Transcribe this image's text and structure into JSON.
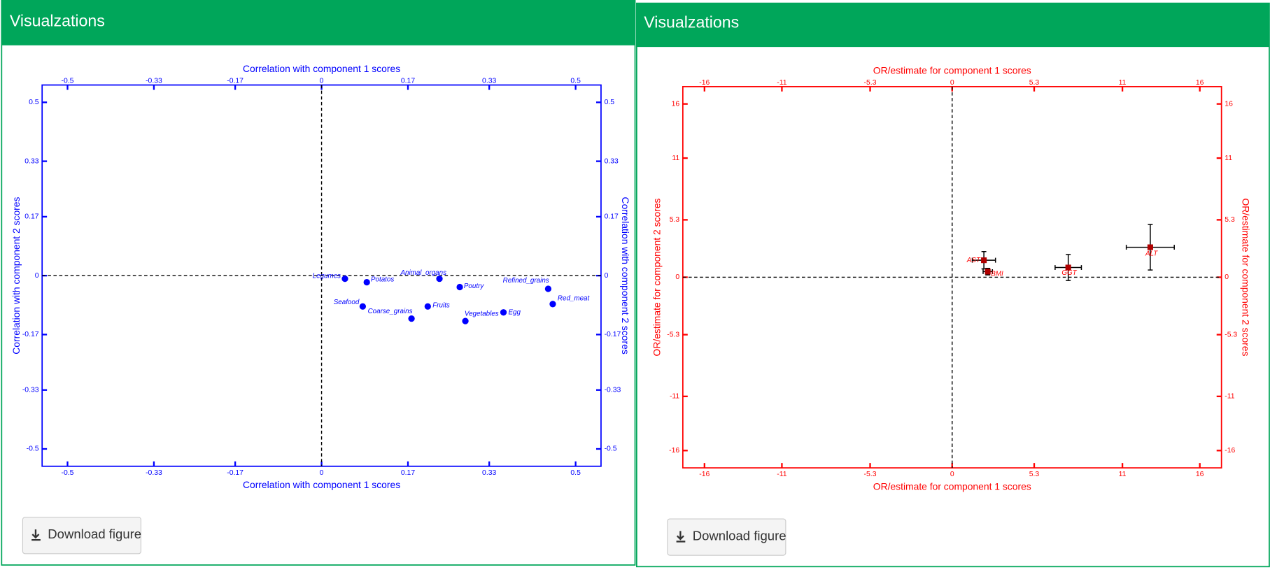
{
  "panels": [
    {
      "title": "Visualzations",
      "button": "Download figure"
    },
    {
      "title": "Visualzations",
      "button": "Download figure"
    }
  ],
  "chart_data": [
    {
      "type": "scatter",
      "color": "#0000ff",
      "marker_color": "#0000ff",
      "xlabel": "Correlation with component 1 scores",
      "ylabel": "Correlation with component 2 scores",
      "xlim": [
        -0.55,
        0.55
      ],
      "ylim": [
        -0.55,
        0.55
      ],
      "xticks": [
        -0.5,
        -0.33,
        -0.17,
        0,
        0.17,
        0.33,
        0.5
      ],
      "yticks": [
        -0.5,
        -0.33,
        -0.17,
        0,
        0.17,
        0.33,
        0.5
      ],
      "zero_lines": true,
      "labels": [
        "Legumes",
        "Potatos",
        "Animal_organs",
        "Poutry",
        "Refined_grains",
        "Red_meat",
        "Seafood",
        "Coarse_grains",
        "Fruits",
        "Vegetables",
        "Egg"
      ],
      "x": [
        0.046,
        0.089,
        0.232,
        0.272,
        0.446,
        0.455,
        0.081,
        0.177,
        0.209,
        0.283,
        0.358
      ],
      "values": [
        -0.009,
        -0.019,
        -0.009,
        -0.033,
        -0.038,
        -0.082,
        -0.089,
        -0.124,
        -0.089,
        -0.131,
        -0.106
      ]
    },
    {
      "type": "scatter",
      "color": "#ff0000",
      "marker_color": "#b00000",
      "xlabel": "OR/estimate for component 1 scores",
      "ylabel": "OR/estimate for component 2 scores",
      "xlim": [
        -17.4,
        17.4
      ],
      "ylim": [
        -17.6,
        17.6
      ],
      "xticks": [
        -16,
        -11,
        -5.3,
        0,
        5.3,
        11,
        16
      ],
      "yticks": [
        -16,
        -11,
        -5.3,
        0,
        5.3,
        11,
        16
      ],
      "zero_lines": true,
      "labels": [
        "AST",
        "BMI",
        "GGT",
        "ALT"
      ],
      "x": [
        2.05,
        2.3,
        7.5,
        12.8
      ],
      "values": [
        1.57,
        0.52,
        0.9,
        2.77
      ],
      "xerr": [
        0.75,
        0.3,
        0.85,
        1.55
      ],
      "yerr": [
        0.8,
        0.3,
        1.2,
        2.1
      ]
    }
  ]
}
